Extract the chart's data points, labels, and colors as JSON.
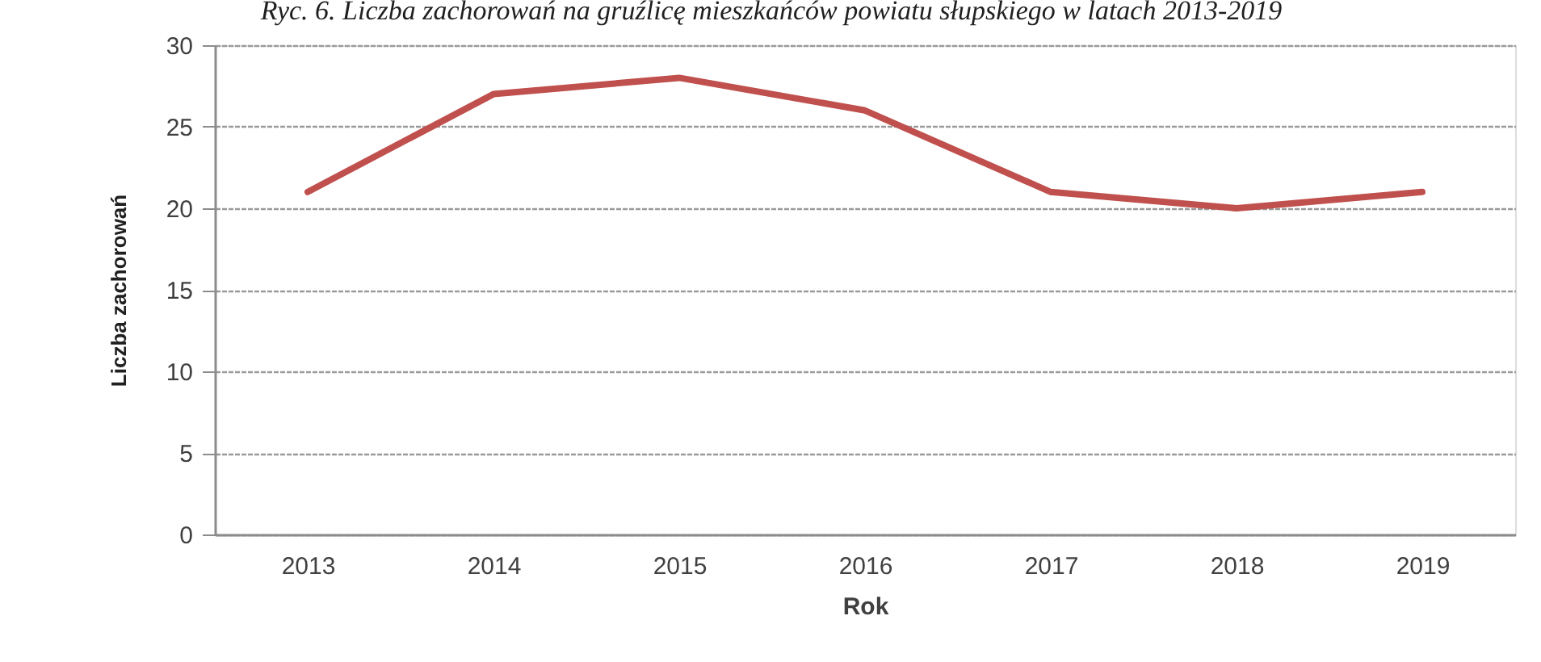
{
  "chart_data": {
    "type": "line",
    "title": "Ryc. 6. Liczba zachorowań na gruźlicę mieszkańców powiatu słupskiego w latach 2013-2019",
    "xlabel": "Rok",
    "ylabel": "Liczba zachorowań",
    "categories": [
      "2013",
      "2014",
      "2015",
      "2016",
      "2017",
      "2018",
      "2019"
    ],
    "series": [
      {
        "color": "#c0504d",
        "values": [
          21,
          27,
          28,
          26,
          21,
          20,
          21
        ]
      }
    ],
    "ylim": [
      0,
      30
    ],
    "yticks": [
      0,
      5,
      10,
      15,
      20,
      25,
      30
    ],
    "grid": "y",
    "marker": "none",
    "line_style": "solid"
  }
}
